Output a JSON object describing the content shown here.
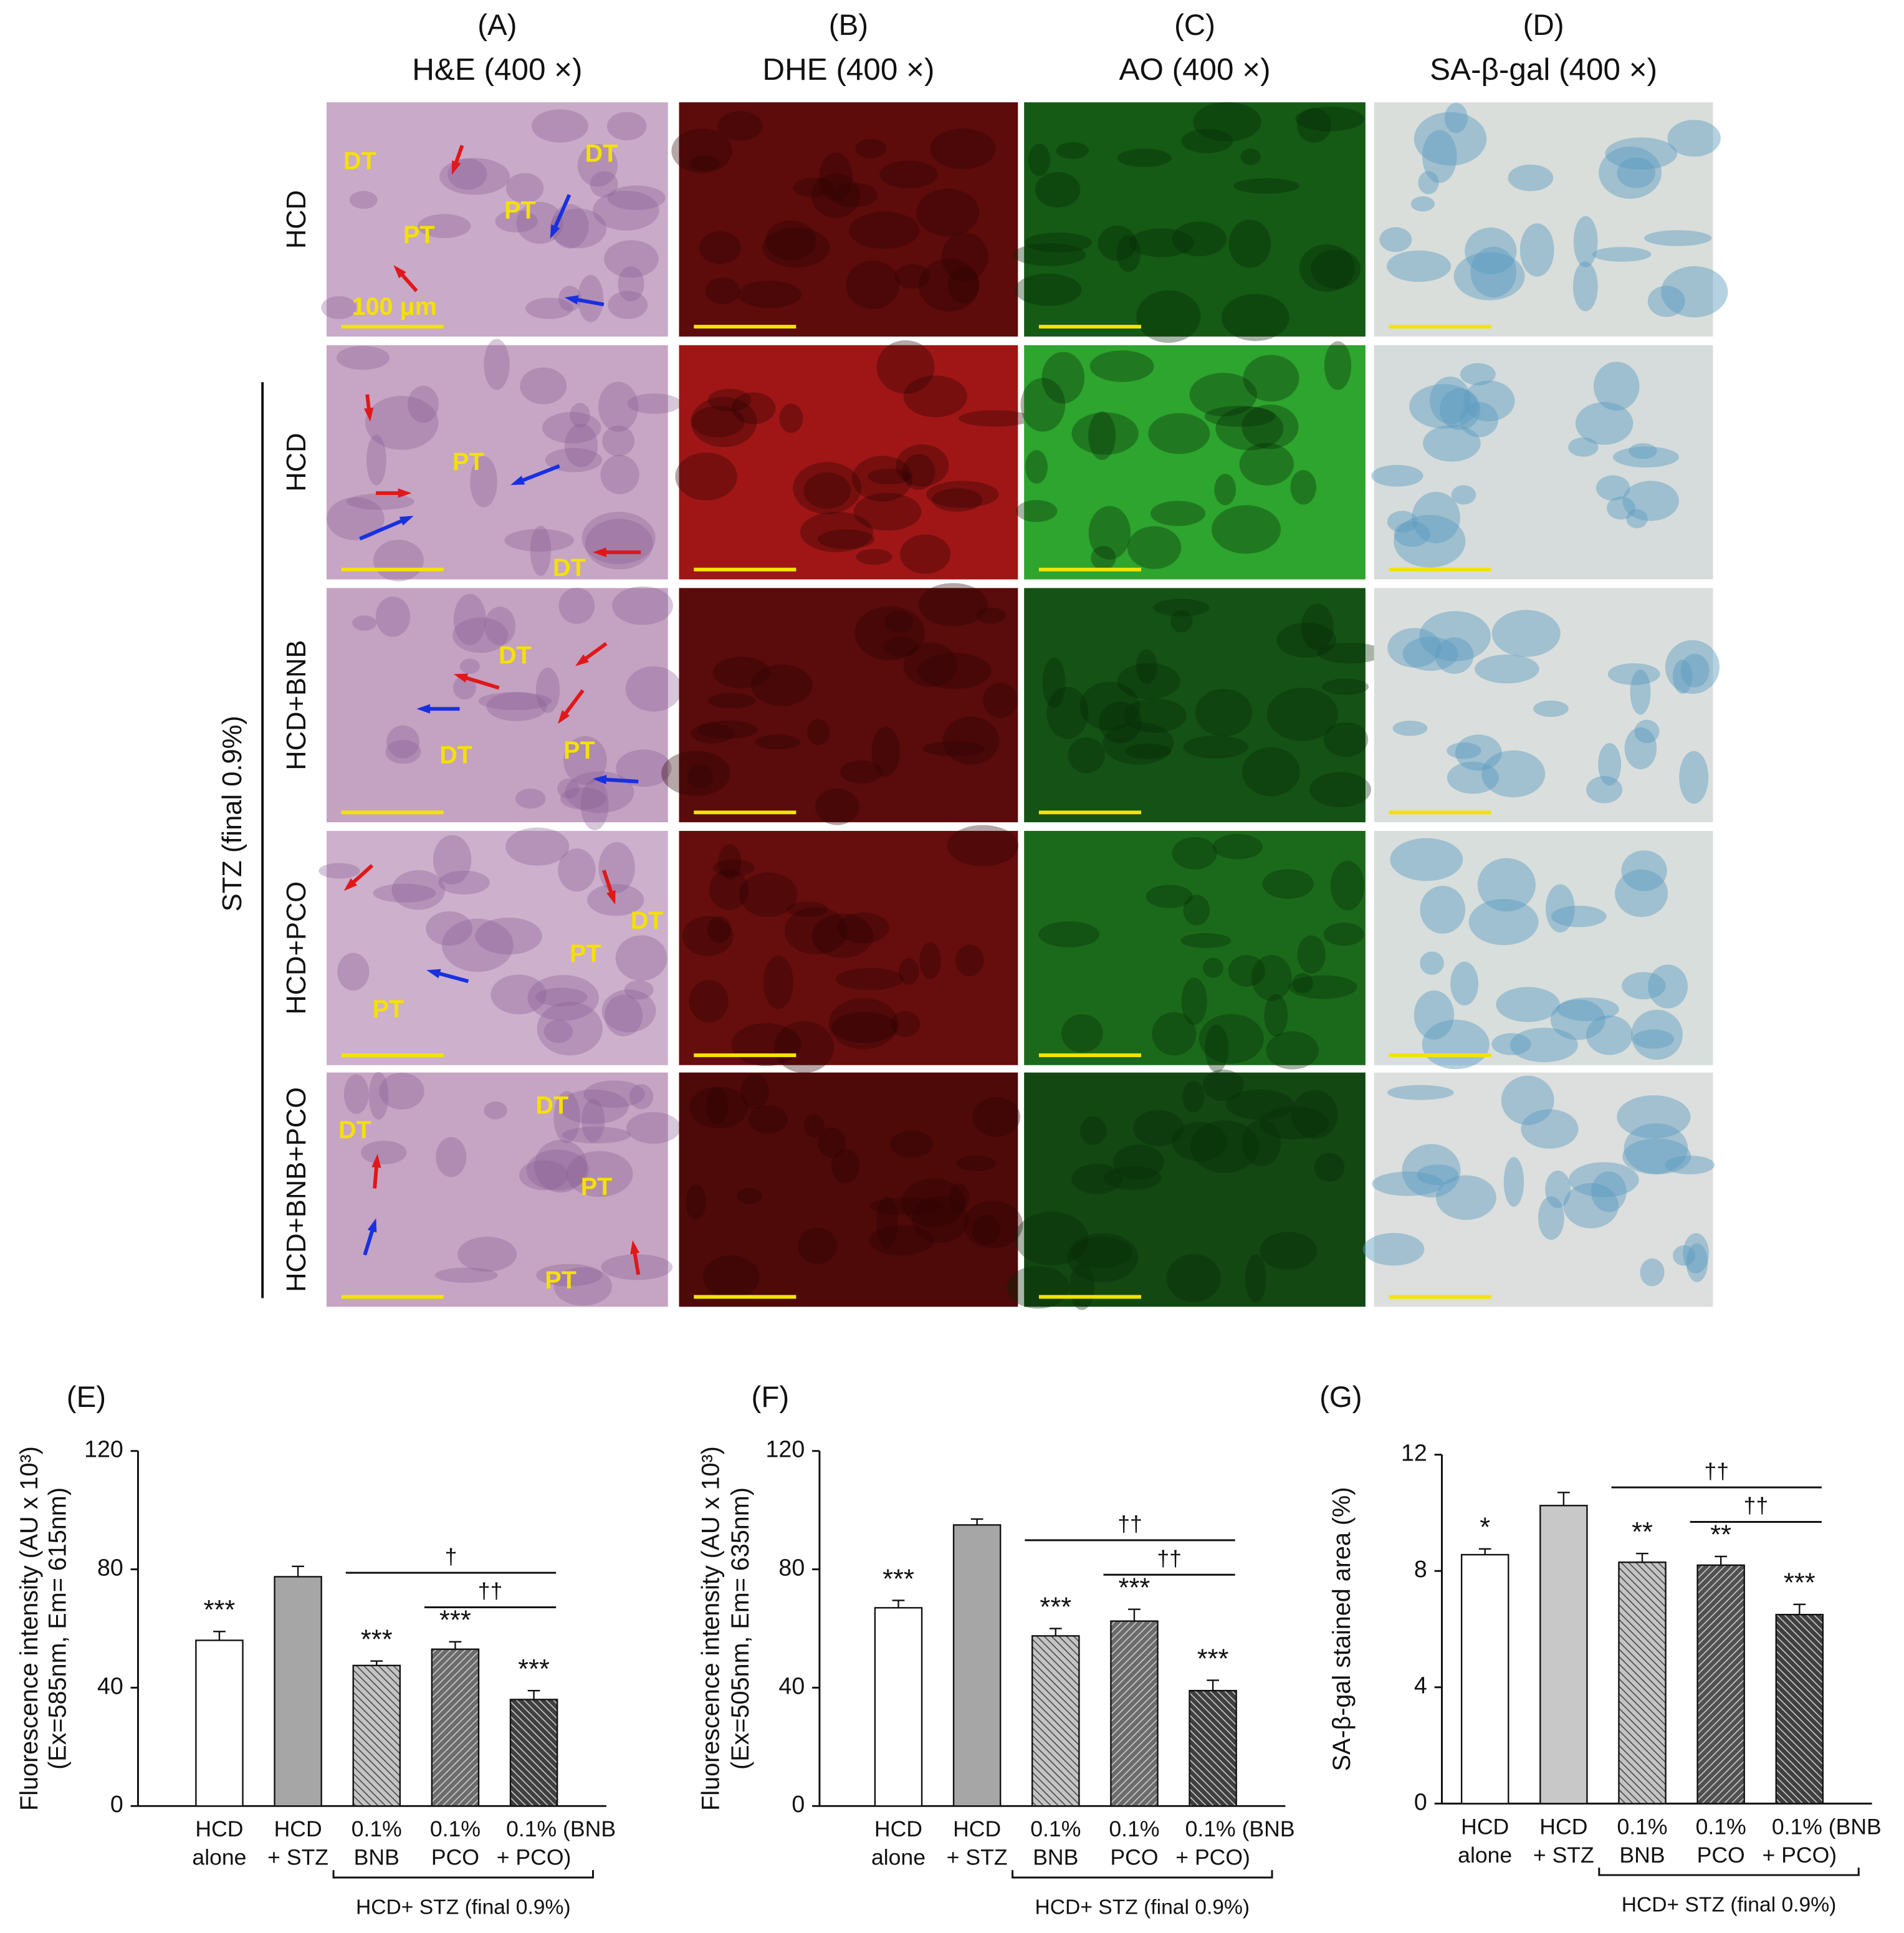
{
  "micrographs": {
    "columns": [
      {
        "letter": "(A)",
        "title": "H&E (400 ×)"
      },
      {
        "letter": "(B)",
        "title": "DHE (400 ×)"
      },
      {
        "letter": "(C)",
        "title": "AO (400 ×)"
      },
      {
        "letter": "(D)",
        "title": "SA-β-gal (400 ×)"
      }
    ],
    "rows": [
      "HCD",
      "HCD",
      "HCD+BNB",
      "HCD+PCO",
      "HCD+BNB+PCO"
    ],
    "group_label": "STZ (final 0.9%)",
    "scale_label": "100 μm",
    "he_labels": [
      [
        "DT",
        "DT",
        "PT",
        "PT"
      ],
      [
        "PT",
        "DT"
      ],
      [
        "DT",
        "DT",
        "PT"
      ],
      [
        "DT",
        "PT",
        "PT"
      ],
      [
        "DT",
        "DT",
        "PT",
        "PT"
      ]
    ]
  },
  "chart_data": [
    {
      "type": "bar",
      "panel": "(E)",
      "ylabel": [
        "Fluorescence intensity (AU x 10³)",
        "(Ex=585nm, Em= 615nm)"
      ],
      "categories": [
        [
          "HCD",
          "alone"
        ],
        [
          "HCD",
          "+ STZ"
        ],
        [
          "0.1%",
          "BNB"
        ],
        [
          "0.1%",
          "PCO"
        ],
        [
          "0.1% (BNB",
          "+ PCO)"
        ]
      ],
      "values": [
        56,
        77.5,
        47.5,
        53,
        36
      ],
      "errors": [
        3,
        3.5,
        1.5,
        2.5,
        3
      ],
      "colors": [
        "#ffffff",
        "#a6a6a6",
        "#c4c4c4",
        "#6b6b6b",
        "#3f3f3f"
      ],
      "hatches": [
        "none",
        "none",
        "back",
        "fwd",
        "back"
      ],
      "significance": [
        "***",
        null,
        "***",
        "***",
        "***"
      ],
      "comparisons": [
        "†",
        "††"
      ],
      "group_label": "HCD+ STZ (final 0.9%)",
      "ylim": [
        0,
        120
      ],
      "yticks": [
        0,
        40,
        80,
        120
      ]
    },
    {
      "type": "bar",
      "panel": "(F)",
      "ylabel": [
        "Fluorescence intensity (AU x 10³)",
        "(Ex=505nm, Em= 635nm)"
      ],
      "categories": [
        [
          "HCD",
          "alone"
        ],
        [
          "HCD",
          "+ STZ"
        ],
        [
          "0.1%",
          "BNB"
        ],
        [
          "0.1%",
          "PCO"
        ],
        [
          "0.1% (BNB",
          "+ PCO)"
        ]
      ],
      "values": [
        67,
        95,
        57.5,
        62.5,
        39
      ],
      "errors": [
        2.5,
        2,
        2.5,
        4,
        3.5
      ],
      "colors": [
        "#ffffff",
        "#a6a6a6",
        "#c4c4c4",
        "#6b6b6b",
        "#3f3f3f"
      ],
      "hatches": [
        "none",
        "none",
        "back",
        "fwd",
        "back"
      ],
      "significance": [
        "***",
        null,
        "***",
        "***",
        "***"
      ],
      "comparisons": [
        "††",
        "††"
      ],
      "group_label": "HCD+ STZ (final 0.9%)",
      "ylim": [
        0,
        120
      ],
      "yticks": [
        0,
        40,
        80,
        120
      ]
    },
    {
      "type": "bar",
      "panel": "(G)",
      "ylabel": [
        "SA-β-gal stained area (%)"
      ],
      "categories": [
        [
          "HCD",
          "alone"
        ],
        [
          "HCD",
          "+ STZ"
        ],
        [
          "0.1%",
          "BNB"
        ],
        [
          "0.1%",
          "PCO"
        ],
        [
          "0.1% (BNB",
          "+ PCO)"
        ]
      ],
      "values": [
        8.56,
        10.25,
        8.3,
        8.2,
        6.5
      ],
      "errors": [
        0.2,
        0.45,
        0.3,
        0.3,
        0.35
      ],
      "colors": [
        "#ffffff",
        "#c8c8c8",
        "#c4c4c4",
        "#505050",
        "#3f3f3f"
      ],
      "hatches": [
        "none",
        "none",
        "back",
        "fwd",
        "back"
      ],
      "significance": [
        "*",
        null,
        "**",
        "**",
        "***"
      ],
      "comparisons": [
        "††",
        "††"
      ],
      "group_label": "HCD+ STZ (final 0.9%)",
      "ylim": [
        0,
        12
      ],
      "yticks": [
        0,
        4,
        8,
        12
      ]
    }
  ]
}
